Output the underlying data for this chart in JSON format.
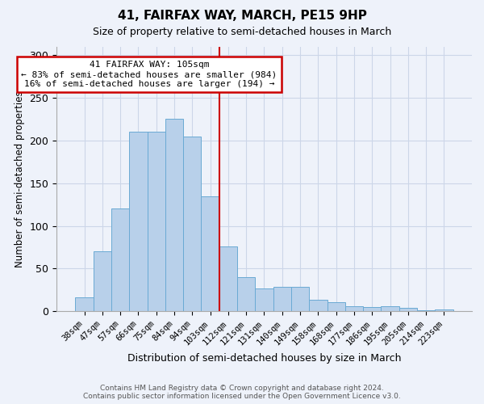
{
  "title": "41, FAIRFAX WAY, MARCH, PE15 9HP",
  "subtitle": "Size of property relative to semi-detached houses in March",
  "xlabel": "Distribution of semi-detached houses by size in March",
  "ylabel": "Number of semi-detached properties",
  "categories": [
    "38sqm",
    "47sqm",
    "57sqm",
    "66sqm",
    "75sqm",
    "84sqm",
    "94sqm",
    "103sqm",
    "112sqm",
    "121sqm",
    "131sqm",
    "140sqm",
    "149sqm",
    "158sqm",
    "168sqm",
    "177sqm",
    "186sqm",
    "195sqm",
    "205sqm",
    "214sqm",
    "223sqm"
  ],
  "values": [
    16,
    70,
    120,
    210,
    210,
    225,
    205,
    135,
    76,
    40,
    27,
    29,
    29,
    14,
    11,
    6,
    5,
    6,
    4,
    1,
    2
  ],
  "bar_color": "#b8d0ea",
  "bar_edge_color": "#6aaad4",
  "vline_color": "#cc0000",
  "annotation_text": "41 FAIRFAX WAY: 105sqm\n← 83% of semi-detached houses are smaller (984)\n16% of semi-detached houses are larger (194) →",
  "annotation_box_color": "#ffffff",
  "annotation_box_edge_color": "#cc0000",
  "ylim": [
    0,
    310
  ],
  "yticks": [
    0,
    50,
    100,
    150,
    200,
    250,
    300
  ],
  "footer": "Contains HM Land Registry data © Crown copyright and database right 2024.\nContains public sector information licensed under the Open Government Licence v3.0.",
  "grid_color": "#ccd6e8",
  "background_color": "#eef2fa"
}
